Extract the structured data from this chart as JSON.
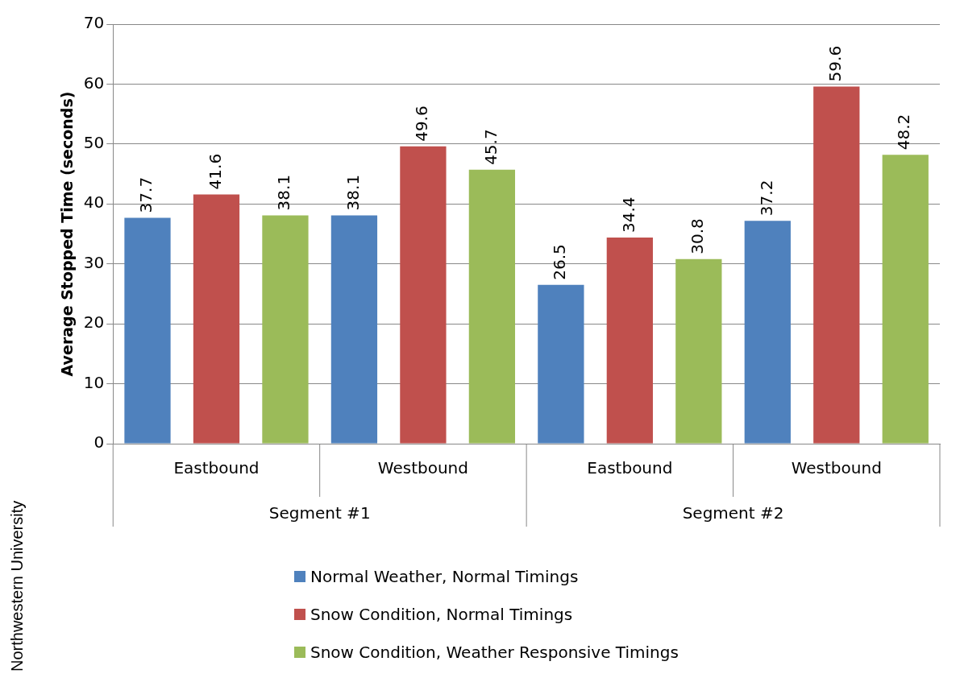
{
  "chart_data": {
    "type": "bar",
    "ylabel": "Average Stopped Time (seconds)",
    "categories": [
      "Eastbound",
      "Westbound",
      "Eastbound",
      "Westbound"
    ],
    "series": [
      {
        "name": "Normal Weather, Normal Timings",
        "color": "#4f81bd",
        "values": [
          37.7,
          38.1,
          26.5,
          37.2
        ]
      },
      {
        "name": "Snow Condition, Normal Timings",
        "color": "#c0504d",
        "values": [
          41.6,
          49.6,
          34.4,
          59.6
        ]
      },
      {
        "name": "Snow Condition, Weather Responsive Timings",
        "color": "#9bbb59",
        "values": [
          38.1,
          45.7,
          30.8,
          48.2
        ]
      }
    ],
    "ylim": [
      0,
      70
    ],
    "yticks": [
      0,
      10,
      20,
      30,
      40,
      50,
      60,
      70
    ],
    "grid": "y",
    "legend": "bottom",
    "data_labels": true,
    "annotations": [
      "Segment #1",
      "Segment #2",
      "Northwestern University"
    ]
  }
}
